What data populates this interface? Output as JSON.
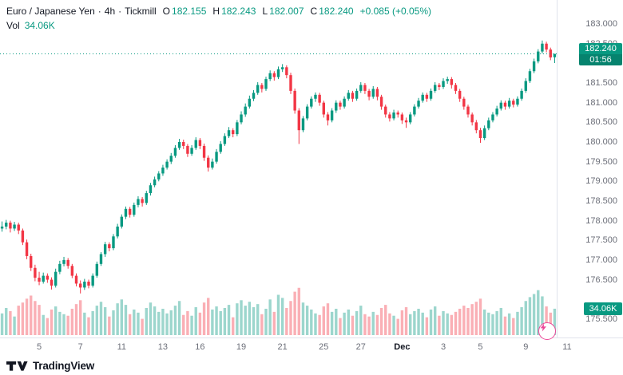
{
  "header": {
    "symbol": "Euro / Japanese Yen",
    "sep": "·",
    "interval": "4h",
    "broker": "Tickmill",
    "ohlc": [
      [
        "O",
        "182.155"
      ],
      [
        "H",
        "182.243"
      ],
      [
        "L",
        "182.007"
      ],
      [
        "C",
        "182.240"
      ]
    ],
    "change": "+0.085 (+0.05%)",
    "volume_label": "Vol",
    "volume_value": "34.06K"
  },
  "price_axis": {
    "labels": [
      "183.000",
      "182.500",
      "182.000",
      "181.500",
      "181.000",
      "180.500",
      "180.000",
      "179.500",
      "179.000",
      "178.500",
      "178.000",
      "177.500",
      "177.000",
      "176.500",
      "175.500"
    ],
    "badge_price": "182.240",
    "badge_countdown": "01:56",
    "volume_badge": "34.06K"
  },
  "logo": {
    "text": "TradingView"
  },
  "colors": {
    "up": "#089981",
    "down": "#f23645",
    "vol_up": "rgba(8,153,129,0.4)",
    "vol_down": "rgba(242,54,69,0.4)",
    "badge": "#089981",
    "axis_text": "#6b6e78",
    "text": "#131722",
    "border": "#e0e3eb",
    "pink": "#ec4899"
  },
  "chart_data": {
    "type": "candlestick",
    "title": "Euro / Japanese Yen · 4h · Tickmill",
    "legend_position": "top-left",
    "grid": false,
    "ylim": [
      175.03,
      183.61
    ],
    "y_tick_step": 0.5,
    "volume_max": 70,
    "last_price": 182.24,
    "countdown": "01:56",
    "time_labels": [
      [
        "5",
        9
      ],
      [
        "7",
        19
      ],
      [
        "11",
        29
      ],
      [
        "13",
        39
      ],
      [
        "16",
        48
      ],
      [
        "19",
        58
      ],
      [
        "21",
        68
      ],
      [
        "25",
        78
      ],
      [
        "27",
        87
      ],
      [
        "Dec",
        97
      ],
      [
        "3",
        107
      ],
      [
        "5",
        116
      ],
      [
        "9",
        127
      ],
      [
        "11",
        137
      ]
    ],
    "candles_format": [
      "open",
      "high",
      "low",
      "close",
      "volume_k"
    ],
    "candles": [
      [
        177.8,
        177.98,
        177.72,
        177.85,
        28
      ],
      [
        177.85,
        178.02,
        177.78,
        177.95,
        35
      ],
      [
        177.95,
        178.0,
        177.7,
        177.8,
        31
      ],
      [
        177.8,
        177.97,
        177.74,
        177.9,
        24
      ],
      [
        177.9,
        177.95,
        177.66,
        177.75,
        38
      ],
      [
        177.75,
        177.8,
        177.38,
        177.45,
        42
      ],
      [
        177.45,
        177.52,
        177.02,
        177.1,
        47
      ],
      [
        177.1,
        177.16,
        176.72,
        176.8,
        51
      ],
      [
        176.8,
        176.88,
        176.46,
        176.55,
        44
      ],
      [
        176.55,
        176.7,
        176.36,
        176.45,
        39
      ],
      [
        176.45,
        176.68,
        176.4,
        176.6,
        26
      ],
      [
        176.6,
        176.66,
        176.42,
        176.5,
        22
      ],
      [
        176.5,
        176.56,
        176.25,
        176.35,
        33
      ],
      [
        176.35,
        176.78,
        176.3,
        176.7,
        37
      ],
      [
        176.7,
        176.98,
        176.64,
        176.9,
        30
      ],
      [
        176.9,
        177.08,
        176.84,
        177.0,
        27
      ],
      [
        177.0,
        177.05,
        176.78,
        176.85,
        25
      ],
      [
        176.85,
        176.9,
        176.54,
        176.6,
        34
      ],
      [
        176.6,
        176.66,
        176.33,
        176.4,
        40
      ],
      [
        176.4,
        176.48,
        176.15,
        176.3,
        45
      ],
      [
        176.3,
        176.52,
        176.24,
        176.45,
        29
      ],
      [
        176.45,
        176.5,
        176.28,
        176.35,
        23
      ],
      [
        176.35,
        176.66,
        176.3,
        176.6,
        31
      ],
      [
        176.6,
        176.96,
        176.55,
        176.9,
        38
      ],
      [
        176.9,
        177.2,
        176.85,
        177.15,
        43
      ],
      [
        177.15,
        177.46,
        177.08,
        177.4,
        36
      ],
      [
        177.4,
        177.45,
        177.22,
        177.3,
        24
      ],
      [
        177.3,
        177.66,
        177.25,
        177.6,
        32
      ],
      [
        177.6,
        177.92,
        177.55,
        177.85,
        41
      ],
      [
        177.85,
        178.16,
        177.8,
        178.1,
        46
      ],
      [
        178.1,
        178.36,
        178.04,
        178.3,
        39
      ],
      [
        178.3,
        178.35,
        178.08,
        178.15,
        27
      ],
      [
        178.15,
        178.46,
        178.1,
        178.4,
        33
      ],
      [
        178.4,
        178.62,
        178.34,
        178.55,
        29
      ],
      [
        178.55,
        178.6,
        178.36,
        178.45,
        21
      ],
      [
        178.45,
        178.76,
        178.4,
        178.7,
        35
      ],
      [
        178.7,
        178.96,
        178.64,
        178.9,
        42
      ],
      [
        178.9,
        179.12,
        178.85,
        179.05,
        37
      ],
      [
        179.05,
        179.26,
        179.0,
        179.2,
        30
      ],
      [
        179.2,
        179.42,
        179.14,
        179.35,
        34
      ],
      [
        179.35,
        179.56,
        179.3,
        179.5,
        28
      ],
      [
        179.5,
        179.72,
        179.44,
        179.65,
        32
      ],
      [
        179.65,
        179.92,
        179.6,
        179.85,
        38
      ],
      [
        179.85,
        180.08,
        179.8,
        180.0,
        44
      ],
      [
        180.0,
        180.06,
        179.82,
        179.9,
        26
      ],
      [
        179.9,
        179.95,
        179.62,
        179.7,
        31
      ],
      [
        179.7,
        179.92,
        179.65,
        179.85,
        25
      ],
      [
        179.85,
        180.12,
        179.8,
        180.05,
        36
      ],
      [
        180.05,
        180.1,
        179.82,
        179.9,
        29
      ],
      [
        179.9,
        179.96,
        179.52,
        179.6,
        42
      ],
      [
        179.6,
        179.66,
        179.25,
        179.35,
        48
      ],
      [
        179.35,
        179.58,
        179.3,
        179.5,
        33
      ],
      [
        179.5,
        179.82,
        179.45,
        179.75,
        37
      ],
      [
        179.75,
        180.02,
        179.7,
        179.95,
        31
      ],
      [
        179.95,
        180.22,
        179.9,
        180.15,
        35
      ],
      [
        180.15,
        180.38,
        180.1,
        180.3,
        39
      ],
      [
        180.3,
        180.35,
        180.12,
        180.2,
        23
      ],
      [
        180.2,
        180.56,
        180.15,
        180.5,
        41
      ],
      [
        180.5,
        180.78,
        180.45,
        180.7,
        45
      ],
      [
        180.7,
        180.98,
        180.64,
        180.9,
        38
      ],
      [
        180.9,
        181.18,
        180.85,
        181.1,
        43
      ],
      [
        181.1,
        181.32,
        181.04,
        181.25,
        36
      ],
      [
        181.25,
        181.52,
        181.2,
        181.45,
        40
      ],
      [
        181.45,
        181.5,
        181.26,
        181.35,
        27
      ],
      [
        181.35,
        181.66,
        181.3,
        181.6,
        34
      ],
      [
        181.6,
        181.82,
        181.55,
        181.75,
        46
      ],
      [
        181.75,
        181.8,
        181.56,
        181.65,
        30
      ],
      [
        181.65,
        181.92,
        181.6,
        181.85,
        52
      ],
      [
        181.85,
        181.98,
        181.78,
        181.9,
        48
      ],
      [
        181.9,
        181.95,
        181.62,
        181.7,
        35
      ],
      [
        181.7,
        181.76,
        181.22,
        181.3,
        44
      ],
      [
        181.3,
        181.36,
        180.72,
        180.8,
        56
      ],
      [
        180.8,
        180.86,
        179.95,
        180.3,
        61
      ],
      [
        180.3,
        180.66,
        180.25,
        180.6,
        42
      ],
      [
        180.6,
        180.96,
        180.55,
        180.9,
        38
      ],
      [
        180.9,
        181.16,
        180.85,
        181.1,
        33
      ],
      [
        181.1,
        181.26,
        181.02,
        181.2,
        28
      ],
      [
        181.2,
        181.25,
        180.92,
        181.0,
        26
      ],
      [
        181.0,
        181.05,
        180.62,
        180.7,
        37
      ],
      [
        180.7,
        180.76,
        180.42,
        180.55,
        41
      ],
      [
        180.55,
        180.86,
        180.5,
        180.8,
        30
      ],
      [
        180.8,
        181.06,
        180.74,
        181.0,
        34
      ],
      [
        181.0,
        181.05,
        180.82,
        180.9,
        22
      ],
      [
        180.9,
        181.16,
        180.85,
        181.1,
        29
      ],
      [
        181.1,
        181.32,
        181.05,
        181.25,
        33
      ],
      [
        181.25,
        181.3,
        181.02,
        181.1,
        25
      ],
      [
        181.1,
        181.36,
        181.05,
        181.3,
        31
      ],
      [
        181.3,
        181.52,
        181.25,
        181.45,
        38
      ],
      [
        181.45,
        181.5,
        181.22,
        181.3,
        27
      ],
      [
        181.3,
        181.35,
        181.06,
        181.15,
        24
      ],
      [
        181.15,
        181.42,
        181.1,
        181.35,
        30
      ],
      [
        181.35,
        181.4,
        181.06,
        181.15,
        26
      ],
      [
        181.15,
        181.2,
        180.82,
        180.9,
        35
      ],
      [
        180.9,
        180.95,
        180.62,
        180.7,
        39
      ],
      [
        180.7,
        180.76,
        180.52,
        180.6,
        28
      ],
      [
        180.6,
        180.82,
        180.55,
        180.75,
        25
      ],
      [
        180.75,
        180.8,
        180.62,
        180.7,
        21
      ],
      [
        180.7,
        180.75,
        180.46,
        180.55,
        32
      ],
      [
        180.55,
        180.62,
        180.36,
        180.5,
        36
      ],
      [
        180.5,
        180.76,
        180.45,
        180.7,
        27
      ],
      [
        180.7,
        180.96,
        180.65,
        180.9,
        31
      ],
      [
        180.9,
        181.12,
        180.85,
        181.05,
        34
      ],
      [
        181.05,
        181.26,
        181.0,
        181.2,
        29
      ],
      [
        181.2,
        181.25,
        181.02,
        181.1,
        23
      ],
      [
        181.1,
        181.36,
        181.05,
        181.3,
        33
      ],
      [
        181.3,
        181.52,
        181.25,
        181.45,
        37
      ],
      [
        181.45,
        181.5,
        181.32,
        181.4,
        25
      ],
      [
        181.4,
        181.62,
        181.35,
        181.55,
        31
      ],
      [
        181.55,
        181.66,
        181.48,
        181.6,
        28
      ],
      [
        181.6,
        181.65,
        181.36,
        181.45,
        26
      ],
      [
        181.45,
        181.5,
        181.22,
        181.3,
        30
      ],
      [
        181.3,
        181.35,
        181.02,
        181.1,
        34
      ],
      [
        181.1,
        181.15,
        180.82,
        180.9,
        38
      ],
      [
        180.9,
        180.95,
        180.62,
        180.7,
        35
      ],
      [
        180.7,
        180.75,
        180.42,
        180.5,
        40
      ],
      [
        180.5,
        180.56,
        180.22,
        180.3,
        43
      ],
      [
        180.3,
        180.36,
        179.98,
        180.1,
        47
      ],
      [
        180.1,
        180.42,
        180.05,
        180.35,
        33
      ],
      [
        180.35,
        180.62,
        180.3,
        180.55,
        29
      ],
      [
        180.55,
        180.76,
        180.5,
        180.7,
        27
      ],
      [
        180.7,
        180.92,
        180.65,
        180.85,
        31
      ],
      [
        180.85,
        181.06,
        180.8,
        181.0,
        35
      ],
      [
        181.0,
        181.05,
        180.82,
        180.9,
        24
      ],
      [
        180.9,
        181.12,
        180.85,
        181.05,
        28
      ],
      [
        181.05,
        181.1,
        180.88,
        180.95,
        22
      ],
      [
        180.95,
        181.16,
        180.9,
        181.1,
        30
      ],
      [
        181.1,
        181.36,
        181.05,
        181.3,
        36
      ],
      [
        181.3,
        181.62,
        181.25,
        181.55,
        44
      ],
      [
        181.55,
        181.86,
        181.5,
        181.8,
        49
      ],
      [
        181.8,
        182.12,
        181.75,
        182.05,
        53
      ],
      [
        182.05,
        182.36,
        182.0,
        182.3,
        58
      ],
      [
        182.3,
        182.58,
        182.25,
        182.5,
        50
      ],
      [
        182.5,
        182.55,
        182.28,
        182.35,
        37
      ],
      [
        182.35,
        182.4,
        182.08,
        182.15,
        29
      ],
      [
        182.155,
        182.243,
        182.007,
        182.24,
        34.06
      ]
    ]
  }
}
